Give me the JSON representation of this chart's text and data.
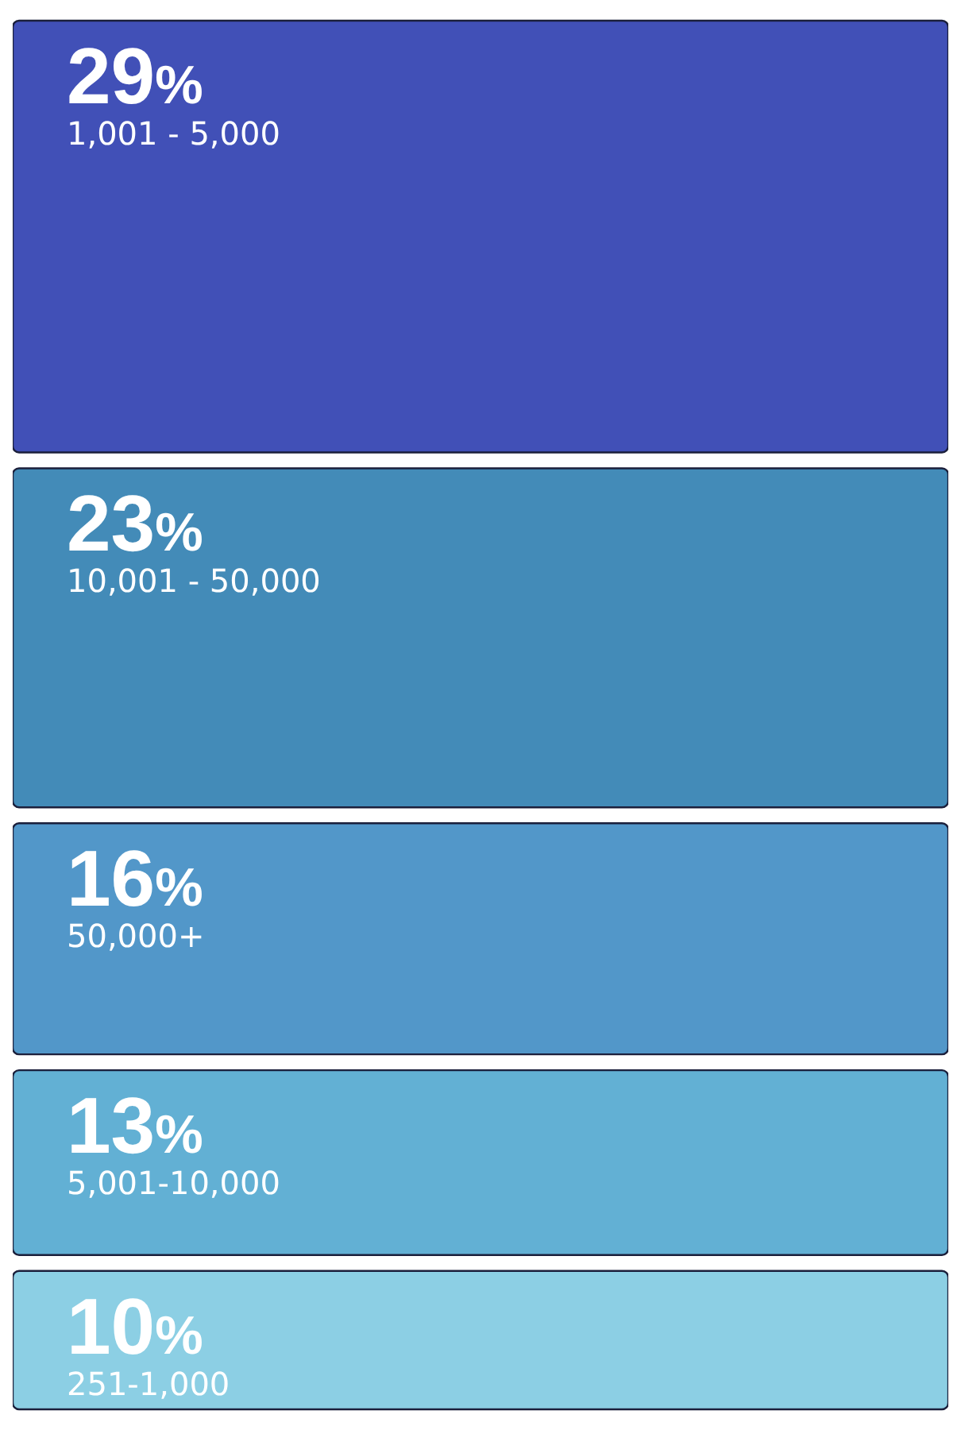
{
  "chart_data": {
    "type": "other",
    "categories": [
      "1,001 - 5,000",
      "10,001 - 50,000",
      "50,000+",
      "5,001-10,000",
      "251-1,000"
    ],
    "values": [
      29,
      23,
      16,
      13,
      10
    ],
    "value_labels": [
      "29%",
      "23%",
      "16%",
      "13%",
      "10%"
    ],
    "colors": [
      "#4150b7",
      "#438bb8",
      "#5297c9",
      "#62b0d4",
      "#8ccfe4"
    ]
  }
}
